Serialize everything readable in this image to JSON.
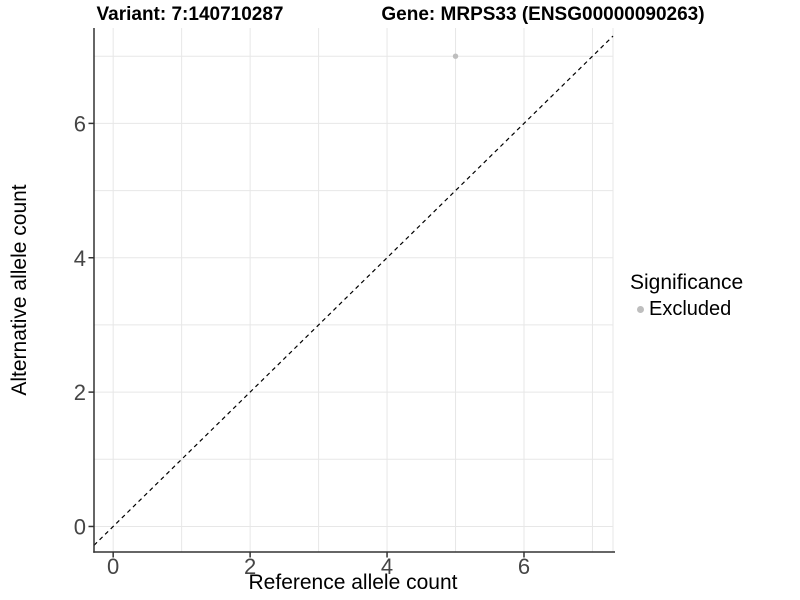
{
  "chart_data": {
    "type": "scatter",
    "title_left": "Variant: 7:140710287",
    "title_right": "Gene: MRPS33 (ENSG00000090263)",
    "xlabel": "Reference allele count",
    "ylabel": "Alternative allele count",
    "xlim": [
      -0.28,
      7.3
    ],
    "ylim": [
      -0.38,
      7.42
    ],
    "x_ticks": [
      0,
      2,
      4,
      6
    ],
    "y_ticks": [
      0,
      2,
      4,
      6
    ],
    "grid_positions": [
      0,
      1,
      2,
      3,
      4,
      5,
      6,
      7
    ],
    "grid": true,
    "series": [
      {
        "name": "Excluded",
        "color": "#bebebe",
        "points": [
          {
            "x": 5,
            "y": 7
          }
        ]
      }
    ],
    "reference_line": {
      "kind": "identity",
      "linetype": "dashed",
      "color": "#000000"
    },
    "legend": {
      "title": "Significance",
      "position": "right",
      "items": [
        {
          "label": "Excluded",
          "color": "#bebebe"
        }
      ]
    }
  },
  "colors": {
    "background": "#ffffff",
    "grid": "#e7e7e7",
    "axis": "#333333",
    "tick_label": "#454545",
    "title": "#000000",
    "point": "#bebebe"
  }
}
